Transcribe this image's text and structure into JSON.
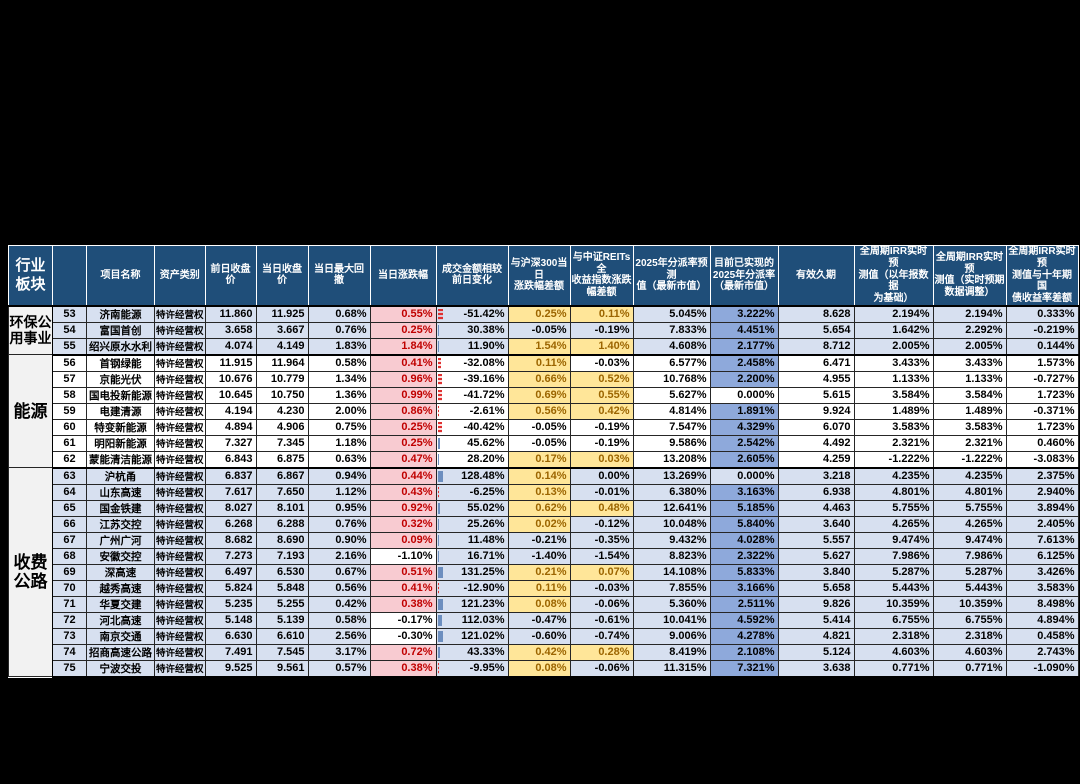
{
  "colors": {
    "header_bg": "#1F4E79",
    "row_alt": "#D7E0F0",
    "group_bg": "#F2F2F2",
    "realized_bg": "#8EA9DB",
    "positive_bg": "#F8CBD1",
    "positive_text": "#C00000",
    "neutral_bg": "#FFE699",
    "neutral_text": "#9C6500",
    "bar_pos": "#6C8EBF",
    "bar_neg": "#E03030"
  },
  "table": {
    "columns": [
      {
        "key": "sector",
        "label": "行业\n板块"
      },
      {
        "key": "num",
        "label": ""
      },
      {
        "key": "name",
        "label": "项目名称"
      },
      {
        "key": "asset",
        "label": "资产类别"
      },
      {
        "key": "prev_close",
        "label": "前日收盘价"
      },
      {
        "key": "close",
        "label": "当日收盘价"
      },
      {
        "key": "max_drawdown",
        "label": "当日最大回撤"
      },
      {
        "key": "change",
        "label": "当日涨跌幅"
      },
      {
        "key": "volume_change",
        "label": "成交金额相较\n前日变化"
      },
      {
        "key": "vs_hs300",
        "label": "与沪深300当日\n涨跌幅差额"
      },
      {
        "key": "vs_csi_reits",
        "label": "与中证REITs全\n收益指数涨跌\n幅差额"
      },
      {
        "key": "dist_forecast",
        "label": "2025年分派率预测\n值（最新市值）"
      },
      {
        "key": "dist_realized",
        "label": "目前已实现的\n2025年分派率\n（最新市值）"
      },
      {
        "key": "duration",
        "label": "有效久期"
      },
      {
        "key": "irr_annual",
        "label": "全周期IRR实时预\n测值（以年报数据\n为基础）"
      },
      {
        "key": "irr_adjusted",
        "label": "全周期IRR实时预\n测值（实时预期\n数据调整）"
      },
      {
        "key": "irr_vs_bond",
        "label": "全周期IRR实时预\n测值与十年期国\n债收益率差额"
      }
    ],
    "groups": [
      {
        "label": "环保公\n用事业",
        "start": 53,
        "end": 55
      },
      {
        "label": "能源",
        "start": 56,
        "end": 62
      },
      {
        "label": "收费\n公路",
        "start": 63,
        "end": 75
      }
    ],
    "rows": [
      {
        "num": 53,
        "name": "济南能源",
        "asset": "特许经营权",
        "prev_close": "11.860",
        "close": "11.925",
        "max_drawdown": "0.68%",
        "change": "0.55%",
        "volume_change": "-51.42%",
        "vs_hs300": "0.25%",
        "vs_csi_reits": "0.11%",
        "dist_forecast": "5.045%",
        "dist_realized": "3.222%",
        "duration": "8.628",
        "irr_annual": "2.194%",
        "irr_adjusted": "2.194%",
        "irr_vs_bond": "0.333%"
      },
      {
        "num": 54,
        "name": "富国首创",
        "asset": "特许经营权",
        "prev_close": "3.658",
        "close": "3.667",
        "max_drawdown": "0.76%",
        "change": "0.25%",
        "volume_change": "30.38%",
        "vs_hs300": "-0.05%",
        "vs_csi_reits": "-0.19%",
        "dist_forecast": "7.833%",
        "dist_realized": "4.451%",
        "duration": "5.654",
        "irr_annual": "1.642%",
        "irr_adjusted": "2.292%",
        "irr_vs_bond": "-0.219%"
      },
      {
        "num": 55,
        "name": "绍兴原水水利",
        "asset": "特许经营权",
        "prev_close": "4.074",
        "close": "4.149",
        "max_drawdown": "1.83%",
        "change": "1.84%",
        "volume_change": "11.90%",
        "vs_hs300": "1.54%",
        "vs_csi_reits": "1.40%",
        "dist_forecast": "4.608%",
        "dist_realized": "2.177%",
        "duration": "8.712",
        "irr_annual": "2.005%",
        "irr_adjusted": "2.005%",
        "irr_vs_bond": "0.144%"
      },
      {
        "num": 56,
        "name": "首钢绿能",
        "asset": "特许经营权",
        "prev_close": "11.915",
        "close": "11.964",
        "max_drawdown": "0.58%",
        "change": "0.41%",
        "volume_change": "-32.08%",
        "vs_hs300": "0.11%",
        "vs_csi_reits": "-0.03%",
        "dist_forecast": "6.577%",
        "dist_realized": "2.458%",
        "duration": "6.471",
        "irr_annual": "3.433%",
        "irr_adjusted": "3.433%",
        "irr_vs_bond": "1.573%"
      },
      {
        "num": 57,
        "name": "京能光伏",
        "asset": "特许经营权",
        "prev_close": "10.676",
        "close": "10.779",
        "max_drawdown": "1.34%",
        "change": "0.96%",
        "volume_change": "-39.16%",
        "vs_hs300": "0.66%",
        "vs_csi_reits": "0.52%",
        "dist_forecast": "10.768%",
        "dist_realized": "2.200%",
        "duration": "4.955",
        "irr_annual": "1.133%",
        "irr_adjusted": "1.133%",
        "irr_vs_bond": "-0.727%"
      },
      {
        "num": 58,
        "name": "国电投新能源",
        "asset": "特许经营权",
        "prev_close": "10.645",
        "close": "10.750",
        "max_drawdown": "1.36%",
        "change": "0.99%",
        "volume_change": "-41.72%",
        "vs_hs300": "0.69%",
        "vs_csi_reits": "0.55%",
        "dist_forecast": "5.627%",
        "dist_realized": "0.000%",
        "duration": "5.615",
        "irr_annual": "3.584%",
        "irr_adjusted": "3.584%",
        "irr_vs_bond": "1.723%"
      },
      {
        "num": 59,
        "name": "电建清源",
        "asset": "特许经营权",
        "prev_close": "4.194",
        "close": "4.230",
        "max_drawdown": "2.00%",
        "change": "0.86%",
        "volume_change": "-2.61%",
        "vs_hs300": "0.56%",
        "vs_csi_reits": "0.42%",
        "dist_forecast": "4.814%",
        "dist_realized": "1.891%",
        "duration": "9.924",
        "irr_annual": "1.489%",
        "irr_adjusted": "1.489%",
        "irr_vs_bond": "-0.371%"
      },
      {
        "num": 60,
        "name": "特变新能源",
        "asset": "特许经营权",
        "prev_close": "4.894",
        "close": "4.906",
        "max_drawdown": "0.75%",
        "change": "0.25%",
        "volume_change": "-40.42%",
        "vs_hs300": "-0.05%",
        "vs_csi_reits": "-0.19%",
        "dist_forecast": "7.547%",
        "dist_realized": "4.329%",
        "duration": "6.070",
        "irr_annual": "3.583%",
        "irr_adjusted": "3.583%",
        "irr_vs_bond": "1.723%"
      },
      {
        "num": 61,
        "name": "明阳新能源",
        "asset": "特许经营权",
        "prev_close": "7.327",
        "close": "7.345",
        "max_drawdown": "1.18%",
        "change": "0.25%",
        "volume_change": "45.62%",
        "vs_hs300": "-0.05%",
        "vs_csi_reits": "-0.19%",
        "dist_forecast": "9.586%",
        "dist_realized": "2.542%",
        "duration": "4.492",
        "irr_annual": "2.321%",
        "irr_adjusted": "2.321%",
        "irr_vs_bond": "0.460%"
      },
      {
        "num": 62,
        "name": "蒙能清洁能源",
        "asset": "特许经营权",
        "prev_close": "6.843",
        "close": "6.875",
        "max_drawdown": "0.63%",
        "change": "0.47%",
        "volume_change": "28.20%",
        "vs_hs300": "0.17%",
        "vs_csi_reits": "0.03%",
        "dist_forecast": "13.208%",
        "dist_realized": "2.605%",
        "duration": "4.259",
        "irr_annual": "-1.222%",
        "irr_adjusted": "-1.222%",
        "irr_vs_bond": "-3.083%"
      },
      {
        "num": 63,
        "name": "沪杭甬",
        "asset": "特许经营权",
        "prev_close": "6.837",
        "close": "6.867",
        "max_drawdown": "0.94%",
        "change": "0.44%",
        "volume_change": "128.48%",
        "vs_hs300": "0.14%",
        "vs_csi_reits": "0.00%",
        "dist_forecast": "13.269%",
        "dist_realized": "0.000%",
        "duration": "3.218",
        "irr_annual": "4.235%",
        "irr_adjusted": "4.235%",
        "irr_vs_bond": "2.375%"
      },
      {
        "num": 64,
        "name": "山东高速",
        "asset": "特许经营权",
        "prev_close": "7.617",
        "close": "7.650",
        "max_drawdown": "1.12%",
        "change": "0.43%",
        "volume_change": "-6.25%",
        "vs_hs300": "0.13%",
        "vs_csi_reits": "-0.01%",
        "dist_forecast": "6.380%",
        "dist_realized": "3.163%",
        "duration": "6.938",
        "irr_annual": "4.801%",
        "irr_adjusted": "4.801%",
        "irr_vs_bond": "2.940%"
      },
      {
        "num": 65,
        "name": "国金铁建",
        "asset": "特许经营权",
        "prev_close": "8.027",
        "close": "8.101",
        "max_drawdown": "0.95%",
        "change": "0.92%",
        "volume_change": "55.02%",
        "vs_hs300": "0.62%",
        "vs_csi_reits": "0.48%",
        "dist_forecast": "12.641%",
        "dist_realized": "5.185%",
        "duration": "4.463",
        "irr_annual": "5.755%",
        "irr_adjusted": "5.755%",
        "irr_vs_bond": "3.894%"
      },
      {
        "num": 66,
        "name": "江苏交控",
        "asset": "特许经营权",
        "prev_close": "6.268",
        "close": "6.288",
        "max_drawdown": "0.76%",
        "change": "0.32%",
        "volume_change": "25.26%",
        "vs_hs300": "0.02%",
        "vs_csi_reits": "-0.12%",
        "dist_forecast": "10.048%",
        "dist_realized": "5.840%",
        "duration": "3.640",
        "irr_annual": "4.265%",
        "irr_adjusted": "4.265%",
        "irr_vs_bond": "2.405%"
      },
      {
        "num": 67,
        "name": "广州广河",
        "asset": "特许经营权",
        "prev_close": "8.682",
        "close": "8.690",
        "max_drawdown": "0.90%",
        "change": "0.09%",
        "volume_change": "11.48%",
        "vs_hs300": "-0.21%",
        "vs_csi_reits": "-0.35%",
        "dist_forecast": "9.432%",
        "dist_realized": "4.028%",
        "duration": "5.557",
        "irr_annual": "9.474%",
        "irr_adjusted": "9.474%",
        "irr_vs_bond": "7.613%"
      },
      {
        "num": 68,
        "name": "安徽交控",
        "asset": "特许经营权",
        "prev_close": "7.273",
        "close": "7.193",
        "max_drawdown": "2.16%",
        "change": "-1.10%",
        "volume_change": "16.71%",
        "vs_hs300": "-1.40%",
        "vs_csi_reits": "-1.54%",
        "dist_forecast": "8.823%",
        "dist_realized": "2.322%",
        "duration": "5.627",
        "irr_annual": "7.986%",
        "irr_adjusted": "7.986%",
        "irr_vs_bond": "6.125%"
      },
      {
        "num": 69,
        "name": "深高速",
        "asset": "特许经营权",
        "prev_close": "6.497",
        "close": "6.530",
        "max_drawdown": "0.67%",
        "change": "0.51%",
        "volume_change": "131.25%",
        "vs_hs300": "0.21%",
        "vs_csi_reits": "0.07%",
        "dist_forecast": "14.108%",
        "dist_realized": "5.833%",
        "duration": "3.840",
        "irr_annual": "5.287%",
        "irr_adjusted": "5.287%",
        "irr_vs_bond": "3.426%"
      },
      {
        "num": 70,
        "name": "越秀高速",
        "asset": "特许经营权",
        "prev_close": "5.824",
        "close": "5.848",
        "max_drawdown": "0.56%",
        "change": "0.41%",
        "volume_change": "-12.90%",
        "vs_hs300": "0.11%",
        "vs_csi_reits": "-0.03%",
        "dist_forecast": "7.855%",
        "dist_realized": "3.166%",
        "duration": "5.658",
        "irr_annual": "5.443%",
        "irr_adjusted": "5.443%",
        "irr_vs_bond": "3.583%"
      },
      {
        "num": 71,
        "name": "华夏交建",
        "asset": "特许经营权",
        "prev_close": "5.235",
        "close": "5.255",
        "max_drawdown": "0.42%",
        "change": "0.38%",
        "volume_change": "121.23%",
        "vs_hs300": "0.08%",
        "vs_csi_reits": "-0.06%",
        "dist_forecast": "5.360%",
        "dist_realized": "2.511%",
        "duration": "9.826",
        "irr_annual": "10.359%",
        "irr_adjusted": "10.359%",
        "irr_vs_bond": "8.498%"
      },
      {
        "num": 72,
        "name": "河北高速",
        "asset": "特许经营权",
        "prev_close": "5.148",
        "close": "5.139",
        "max_drawdown": "0.58%",
        "change": "-0.17%",
        "volume_change": "112.03%",
        "vs_hs300": "-0.47%",
        "vs_csi_reits": "-0.61%",
        "dist_forecast": "10.041%",
        "dist_realized": "4.592%",
        "duration": "5.414",
        "irr_annual": "6.755%",
        "irr_adjusted": "6.755%",
        "irr_vs_bond": "4.894%"
      },
      {
        "num": 73,
        "name": "南京交通",
        "asset": "特许经营权",
        "prev_close": "6.630",
        "close": "6.610",
        "max_drawdown": "2.56%",
        "change": "-0.30%",
        "volume_change": "121.02%",
        "vs_hs300": "-0.60%",
        "vs_csi_reits": "-0.74%",
        "dist_forecast": "9.006%",
        "dist_realized": "4.278%",
        "duration": "4.821",
        "irr_annual": "2.318%",
        "irr_adjusted": "2.318%",
        "irr_vs_bond": "0.458%"
      },
      {
        "num": 74,
        "name": "招商高速公路",
        "asset": "特许经营权",
        "prev_close": "7.491",
        "close": "7.545",
        "max_drawdown": "3.17%",
        "change": "0.72%",
        "volume_change": "43.33%",
        "vs_hs300": "0.42%",
        "vs_csi_reits": "0.28%",
        "dist_forecast": "8.419%",
        "dist_realized": "2.108%",
        "duration": "5.124",
        "irr_annual": "4.603%",
        "irr_adjusted": "4.603%",
        "irr_vs_bond": "2.743%"
      },
      {
        "num": 75,
        "name": "宁波交投",
        "asset": "特许经营权",
        "prev_close": "9.525",
        "close": "9.561",
        "max_drawdown": "0.57%",
        "change": "0.38%",
        "volume_change": "-9.95%",
        "vs_hs300": "0.08%",
        "vs_csi_reits": "-0.06%",
        "dist_forecast": "11.315%",
        "dist_realized": "7.321%",
        "duration": "3.638",
        "irr_annual": "0.771%",
        "irr_adjusted": "0.771%",
        "irr_vs_bond": "-1.090%"
      }
    ]
  }
}
